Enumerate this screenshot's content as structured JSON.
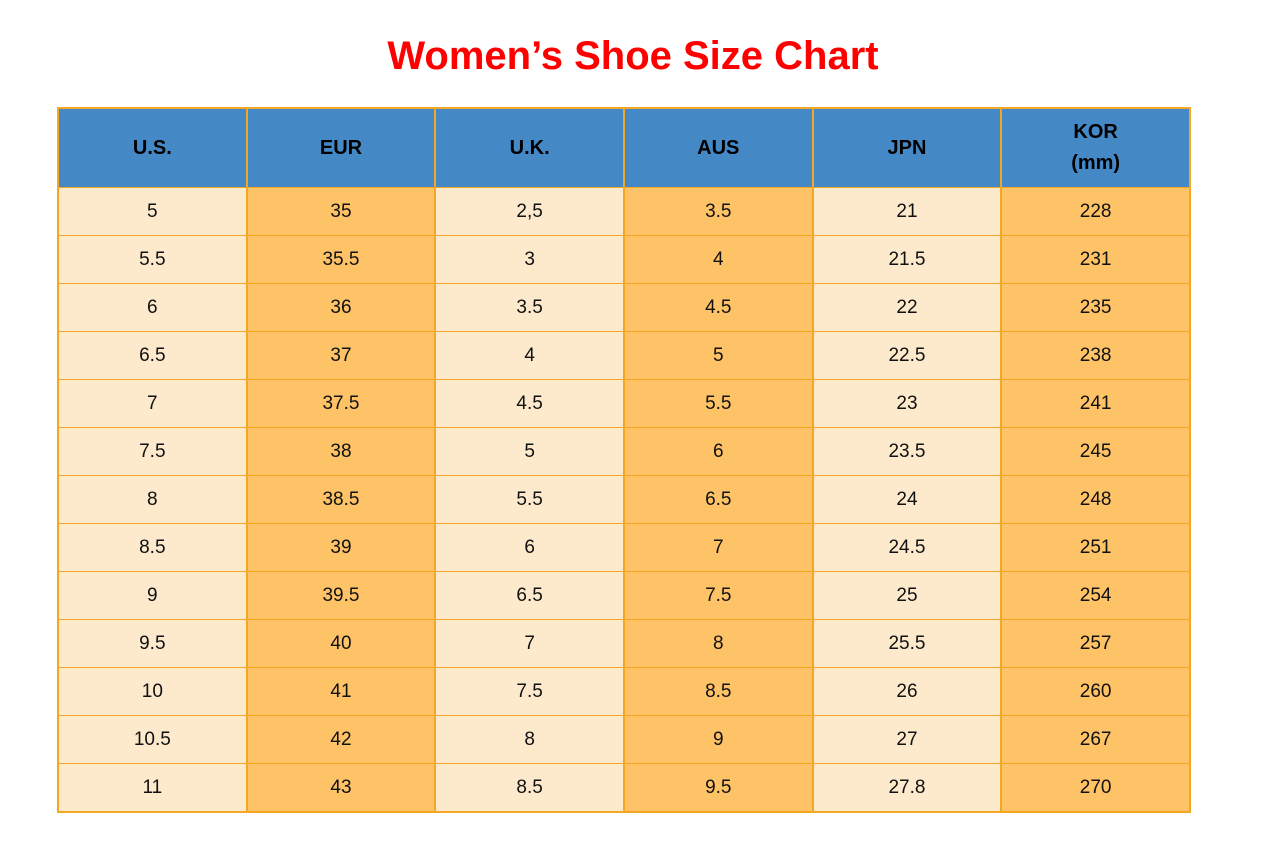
{
  "page": {
    "title": "Women’s Shoe Size Chart"
  },
  "colors": {
    "title_red": "#ff0000",
    "header_blue": "#4489c6",
    "cell_cream": "#fde9cb",
    "cell_orange": "#fec267",
    "border_orange": "#f5a623",
    "text_black": "#111111"
  },
  "chart_data": {
    "type": "table",
    "title": "Women’s Shoe Size Chart",
    "columns": [
      "U.S.",
      "EUR",
      "U.K.",
      "AUS",
      "JPN",
      "KOR\n(mm)"
    ],
    "rows": [
      [
        "5",
        "35",
        "2,5",
        "3.5",
        "21",
        "228"
      ],
      [
        "5.5",
        "35.5",
        "3",
        "4",
        "21.5",
        "231"
      ],
      [
        "6",
        "36",
        "3.5",
        "4.5",
        "22",
        "235"
      ],
      [
        "6.5",
        "37",
        "4",
        "5",
        "22.5",
        "238"
      ],
      [
        "7",
        "37.5",
        "4.5",
        "5.5",
        "23",
        "241"
      ],
      [
        "7.5",
        "38",
        "5",
        "6",
        "23.5",
        "245"
      ],
      [
        "8",
        "38.5",
        "5.5",
        "6.5",
        "24",
        "248"
      ],
      [
        "8.5",
        "39",
        "6",
        "7",
        "24.5",
        "251"
      ],
      [
        "9",
        "39.5",
        "6.5",
        "7.5",
        "25",
        "254"
      ],
      [
        "9.5",
        "40",
        "7",
        "8",
        "25.5",
        "257"
      ],
      [
        "10",
        "41",
        "7.5",
        "8.5",
        "26",
        "260"
      ],
      [
        "10.5",
        "42",
        "8",
        "9",
        "27",
        "267"
      ],
      [
        "11",
        "43",
        "8.5",
        "9.5",
        "27.8",
        "270"
      ]
    ],
    "layout": {
      "column_stripe_pattern": [
        "cream",
        "orange",
        "cream",
        "orange",
        "cream",
        "orange"
      ],
      "header_background": "blue",
      "grid": "orange lines, outer border 2px"
    }
  }
}
